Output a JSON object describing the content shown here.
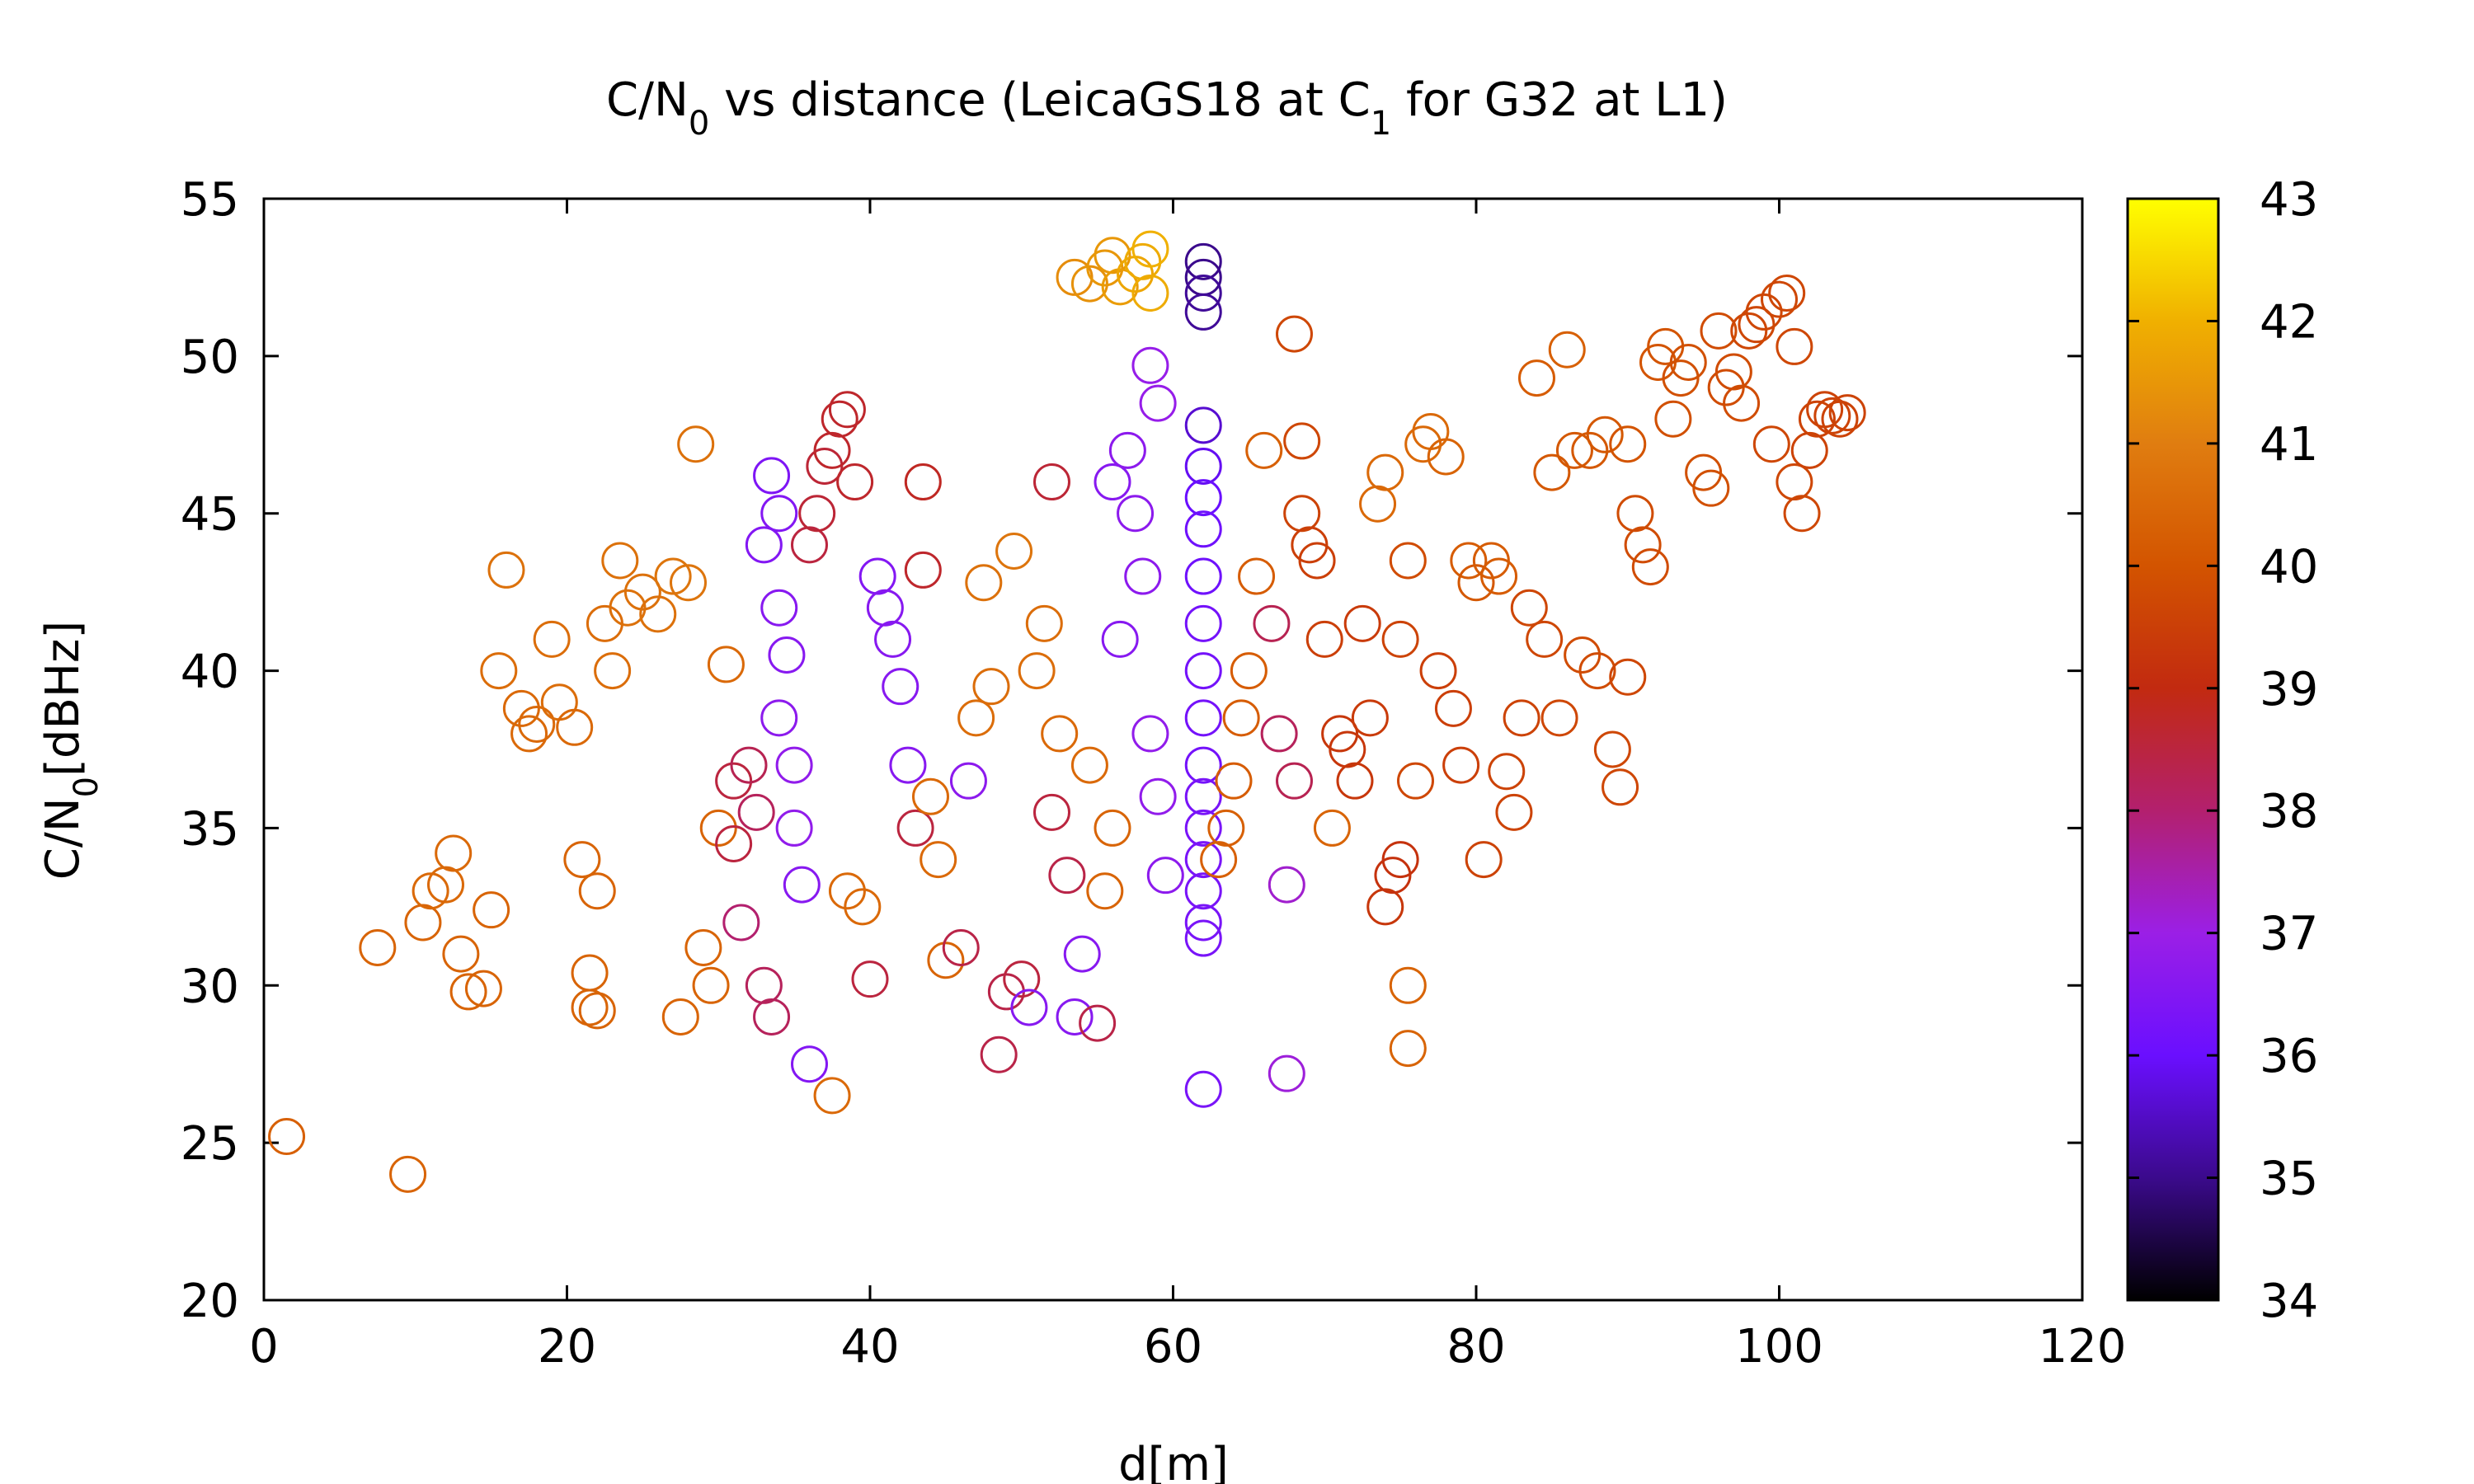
{
  "chart_data": {
    "type": "scatter",
    "title": {
      "part1": "C/N",
      "sub1": "0",
      "part2": " vs distance (LeicaGS18 at C",
      "sub2": "1",
      "part3": " for G32 at L1)"
    },
    "xlabel": "d[m]",
    "ylabel": {
      "main": "C/N",
      "sub": "0",
      "rest": "[dBHz]"
    },
    "xlim": [
      0,
      120
    ],
    "ylim": [
      20,
      55
    ],
    "xticks": [
      "0",
      "20",
      "40",
      "60",
      "80",
      "100",
      "120"
    ],
    "yticks": [
      "20",
      "25",
      "30",
      "35",
      "40",
      "45",
      "50",
      "55"
    ],
    "colorbar": {
      "range": [
        34,
        43
      ],
      "ticks": [
        "34",
        "35",
        "36",
        "37",
        "38",
        "39",
        "40",
        "41",
        "42",
        "43"
      ],
      "palette": [
        "#000000",
        "#3b0a8c",
        "#6a0fff",
        "#9b1fe6",
        "#b3206e",
        "#c22a10",
        "#d35400",
        "#e07d10",
        "#f0b000",
        "#ffff00"
      ]
    },
    "marker": "open-circle",
    "points": [
      [
        1.5,
        25.2,
        40.3
      ],
      [
        9.5,
        24.0,
        40.4
      ],
      [
        7.5,
        31.2,
        40.4
      ],
      [
        10.5,
        32.0,
        40.4
      ],
      [
        11.0,
        33.0,
        40.5
      ],
      [
        12.0,
        33.2,
        40.5
      ],
      [
        12.5,
        34.2,
        40.5
      ],
      [
        13.0,
        31.0,
        40.4
      ],
      [
        13.5,
        29.8,
        40.4
      ],
      [
        14.5,
        29.9,
        40.4
      ],
      [
        15.0,
        32.4,
        40.4
      ],
      [
        15.5,
        40.0,
        40.6
      ],
      [
        16.0,
        43.2,
        40.7
      ],
      [
        17.0,
        38.8,
        40.5
      ],
      [
        17.5,
        38.0,
        40.5
      ],
      [
        18.0,
        38.3,
        40.5
      ],
      [
        19.0,
        41.0,
        40.6
      ],
      [
        19.5,
        39.0,
        40.6
      ],
      [
        20.5,
        38.2,
        40.5
      ],
      [
        21.0,
        34.0,
        40.4
      ],
      [
        21.5,
        30.4,
        40.4
      ],
      [
        21.5,
        29.3,
        40.4
      ],
      [
        22.0,
        33.0,
        40.4
      ],
      [
        22.0,
        29.2,
        40.4
      ],
      [
        22.5,
        41.5,
        40.6
      ],
      [
        23.0,
        40.0,
        40.6
      ],
      [
        23.5,
        43.5,
        40.7
      ],
      [
        24.0,
        42.0,
        40.7
      ],
      [
        25.0,
        42.5,
        40.7
      ],
      [
        26.0,
        41.8,
        40.7
      ],
      [
        27.0,
        43.0,
        40.8
      ],
      [
        27.5,
        29.0,
        40.4
      ],
      [
        28.0,
        42.8,
        40.8
      ],
      [
        28.5,
        47.2,
        40.7
      ],
      [
        29.0,
        31.2,
        40.4
      ],
      [
        29.5,
        30.0,
        40.4
      ],
      [
        30.0,
        35.0,
        40.4
      ],
      [
        30.5,
        40.2,
        40.5
      ],
      [
        31.0,
        36.5,
        38.5
      ],
      [
        31.0,
        34.5,
        38.5
      ],
      [
        31.5,
        32.0,
        38.0
      ],
      [
        32.0,
        37.0,
        38.3
      ],
      [
        32.5,
        35.5,
        38.2
      ],
      [
        33.0,
        30.0,
        38.2
      ],
      [
        33.5,
        29.0,
        38.2
      ],
      [
        33.0,
        44.0,
        36.5
      ],
      [
        33.5,
        46.2,
        36.4
      ],
      [
        34.0,
        45.0,
        36.5
      ],
      [
        34.0,
        42.0,
        36.6
      ],
      [
        34.5,
        40.5,
        36.6
      ],
      [
        34.0,
        38.5,
        36.7
      ],
      [
        35.0,
        37.0,
        36.8
      ],
      [
        35.0,
        35.0,
        36.8
      ],
      [
        35.5,
        33.2,
        36.6
      ],
      [
        36.0,
        44.0,
        38.5
      ],
      [
        36.5,
        45.0,
        38.6
      ],
      [
        37.0,
        46.5,
        38.6
      ],
      [
        37.5,
        47.0,
        38.7
      ],
      [
        38.0,
        48.0,
        38.7
      ],
      [
        38.5,
        48.3,
        38.7
      ],
      [
        39.0,
        46.0,
        38.7
      ],
      [
        36.0,
        27.5,
        36.5
      ],
      [
        37.5,
        26.5,
        40.5
      ],
      [
        38.5,
        33.0,
        40.5
      ],
      [
        39.5,
        32.5,
        40.5
      ],
      [
        40.0,
        30.2,
        38.5
      ],
      [
        40.5,
        43.0,
        36.5
      ],
      [
        41.0,
        42.0,
        36.6
      ],
      [
        41.5,
        41.0,
        36.6
      ],
      [
        42.0,
        39.5,
        36.6
      ],
      [
        42.5,
        37.0,
        36.6
      ],
      [
        43.0,
        35.0,
        38.5
      ],
      [
        43.5,
        43.2,
        38.7
      ],
      [
        43.5,
        46.0,
        38.8
      ],
      [
        44.0,
        36.0,
        40.5
      ],
      [
        44.5,
        34.0,
        40.5
      ],
      [
        45.0,
        30.8,
        40.4
      ],
      [
        46.0,
        31.2,
        38.4
      ],
      [
        46.5,
        36.5,
        36.7
      ],
      [
        47.0,
        38.5,
        40.6
      ],
      [
        47.5,
        42.8,
        40.7
      ],
      [
        48.0,
        39.5,
        40.6
      ],
      [
        48.5,
        27.8,
        38.4
      ],
      [
        49.0,
        29.8,
        38.4
      ],
      [
        49.5,
        43.8,
        40.8
      ],
      [
        50.0,
        30.2,
        38.5
      ],
      [
        50.5,
        29.3,
        36.6
      ],
      [
        51.0,
        40.0,
        40.6
      ],
      [
        51.5,
        41.5,
        40.6
      ],
      [
        52.0,
        46.0,
        38.6
      ],
      [
        52.0,
        35.5,
        38.5
      ],
      [
        52.5,
        38.0,
        40.5
      ],
      [
        53.0,
        33.5,
        38.4
      ],
      [
        53.5,
        29.0,
        36.6
      ],
      [
        54.0,
        31.0,
        36.6
      ],
      [
        54.5,
        37.0,
        40.5
      ],
      [
        55.0,
        28.8,
        38.4
      ],
      [
        55.5,
        33.0,
        40.4
      ],
      [
        56.0,
        35.0,
        40.4
      ],
      [
        56.5,
        41.0,
        36.6
      ],
      [
        56.0,
        46.0,
        36.6
      ],
      [
        57.0,
        47.0,
        36.7
      ],
      [
        57.5,
        45.0,
        36.7
      ],
      [
        58.0,
        43.0,
        36.7
      ],
      [
        58.5,
        38.0,
        36.8
      ],
      [
        59.0,
        36.0,
        36.8
      ],
      [
        59.5,
        33.5,
        36.7
      ],
      [
        58.5,
        49.7,
        36.9
      ],
      [
        59.0,
        48.5,
        36.9
      ],
      [
        53.5,
        52.5,
        41.3
      ],
      [
        54.5,
        52.3,
        41.4
      ],
      [
        55.5,
        52.8,
        41.5
      ],
      [
        56.0,
        53.2,
        41.5
      ],
      [
        56.5,
        52.2,
        41.6
      ],
      [
        57.5,
        52.6,
        41.8
      ],
      [
        58.0,
        53.0,
        41.9
      ],
      [
        58.5,
        53.4,
        42.0
      ],
      [
        58.5,
        52.0,
        41.9
      ],
      [
        62.0,
        53.0,
        35.0
      ],
      [
        62.0,
        52.5,
        35.0
      ],
      [
        62.0,
        52.0,
        35.1
      ],
      [
        62.0,
        51.4,
        35.1
      ],
      [
        62.0,
        47.8,
        35.6
      ],
      [
        62.0,
        46.5,
        35.9
      ],
      [
        62.0,
        45.5,
        36.0
      ],
      [
        62.0,
        44.5,
        36.1
      ],
      [
        62.0,
        43.0,
        36.1
      ],
      [
        62.0,
        41.5,
        36.2
      ],
      [
        62.0,
        40.0,
        36.2
      ],
      [
        62.0,
        38.5,
        36.2
      ],
      [
        62.0,
        37.0,
        36.2
      ],
      [
        62.0,
        36.0,
        36.3
      ],
      [
        62.0,
        35.0,
        36.3
      ],
      [
        62.0,
        34.0,
        36.3
      ],
      [
        62.0,
        33.0,
        36.3
      ],
      [
        62.0,
        32.0,
        36.3
      ],
      [
        62.0,
        31.5,
        36.3
      ],
      [
        62.0,
        26.7,
        36.3
      ],
      [
        63.0,
        34.0,
        40.3
      ],
      [
        63.5,
        35.0,
        40.3
      ],
      [
        64.0,
        36.5,
        40.2
      ],
      [
        64.5,
        38.5,
        40.2
      ],
      [
        65.0,
        40.0,
        40.2
      ],
      [
        65.5,
        43.0,
        40.2
      ],
      [
        66.0,
        47.0,
        40.3
      ],
      [
        66.5,
        41.5,
        38.3
      ],
      [
        67.0,
        38.0,
        38.2
      ],
      [
        67.5,
        33.2,
        37.2
      ],
      [
        67.5,
        27.2,
        37.1
      ],
      [
        68.0,
        36.5,
        38.3
      ],
      [
        68.0,
        50.7,
        39.7
      ],
      [
        68.5,
        47.3,
        39.7
      ],
      [
        68.5,
        45.0,
        39.6
      ],
      [
        69.0,
        44.0,
        39.5
      ],
      [
        69.5,
        43.5,
        39.5
      ],
      [
        70.0,
        41.0,
        39.5
      ],
      [
        70.5,
        35.0,
        40.4
      ],
      [
        71.0,
        38.0,
        39.3
      ],
      [
        71.5,
        37.5,
        39.3
      ],
      [
        72.0,
        36.5,
        39.3
      ],
      [
        72.5,
        41.5,
        39.4
      ],
      [
        73.0,
        38.5,
        39.4
      ],
      [
        73.5,
        45.3,
        40.5
      ],
      [
        74.0,
        46.3,
        40.5
      ],
      [
        74.0,
        32.5,
        39.3
      ],
      [
        74.5,
        33.5,
        39.2
      ],
      [
        75.0,
        34.0,
        39.2
      ],
      [
        75.0,
        41.0,
        39.6
      ],
      [
        75.5,
        43.5,
        39.8
      ],
      [
        75.5,
        30.0,
        40.4
      ],
      [
        75.5,
        28.0,
        40.4
      ],
      [
        76.0,
        36.5,
        39.7
      ],
      [
        76.5,
        47.2,
        40.5
      ],
      [
        77.0,
        47.6,
        40.5
      ],
      [
        77.5,
        40.0,
        39.5
      ],
      [
        78.0,
        46.8,
        40.4
      ],
      [
        78.5,
        38.8,
        39.5
      ],
      [
        79.0,
        37.0,
        39.5
      ],
      [
        79.5,
        43.5,
        40.2
      ],
      [
        80.0,
        42.8,
        40.1
      ],
      [
        80.5,
        34.0,
        39.6
      ],
      [
        81.0,
        43.5,
        40.2
      ],
      [
        81.5,
        43.0,
        40.2
      ],
      [
        82.0,
        36.8,
        39.6
      ],
      [
        82.5,
        35.5,
        39.6
      ],
      [
        83.0,
        38.5,
        39.6
      ],
      [
        83.5,
        42.0,
        39.7
      ],
      [
        84.0,
        49.3,
        40.2
      ],
      [
        84.5,
        41.0,
        39.7
      ],
      [
        85.0,
        46.3,
        40.1
      ],
      [
        85.5,
        38.5,
        39.7
      ],
      [
        86.0,
        50.2,
        40.3
      ],
      [
        86.5,
        47.0,
        40.1
      ],
      [
        87.0,
        40.5,
        39.8
      ],
      [
        87.5,
        47.0,
        40.1
      ],
      [
        88.0,
        40.0,
        39.8
      ],
      [
        88.5,
        47.5,
        40.1
      ],
      [
        89.0,
        37.5,
        39.7
      ],
      [
        89.5,
        36.3,
        39.7
      ],
      [
        90.0,
        47.2,
        40.0
      ],
      [
        90.0,
        39.8,
        39.7
      ],
      [
        90.5,
        45.0,
        39.8
      ],
      [
        91.0,
        44.0,
        39.8
      ],
      [
        91.5,
        43.3,
        39.8
      ],
      [
        92.0,
        49.8,
        40.0
      ],
      [
        92.5,
        50.3,
        40.0
      ],
      [
        93.0,
        48.0,
        39.9
      ],
      [
        93.5,
        49.3,
        39.9
      ],
      [
        94.0,
        49.8,
        39.9
      ],
      [
        95.0,
        46.3,
        39.9
      ],
      [
        95.5,
        45.8,
        39.9
      ],
      [
        96.0,
        50.8,
        39.8
      ],
      [
        96.5,
        49.0,
        39.8
      ],
      [
        97.0,
        49.5,
        39.8
      ],
      [
        97.5,
        48.5,
        39.8
      ],
      [
        98.0,
        50.8,
        39.7
      ],
      [
        98.5,
        51.0,
        39.7
      ],
      [
        99.0,
        51.4,
        39.7
      ],
      [
        99.5,
        47.2,
        39.7
      ],
      [
        100.0,
        51.8,
        39.7
      ],
      [
        100.5,
        52.0,
        39.7
      ],
      [
        101.0,
        50.3,
        39.7
      ],
      [
        101.0,
        46.0,
        39.7
      ],
      [
        101.5,
        45.0,
        39.7
      ],
      [
        102.0,
        47.0,
        39.6
      ],
      [
        102.5,
        48.0,
        39.6
      ],
      [
        103.0,
        48.3,
        39.6
      ],
      [
        103.5,
        48.1,
        39.6
      ],
      [
        104.0,
        48.0,
        39.6
      ],
      [
        104.5,
        48.2,
        39.6
      ]
    ]
  }
}
